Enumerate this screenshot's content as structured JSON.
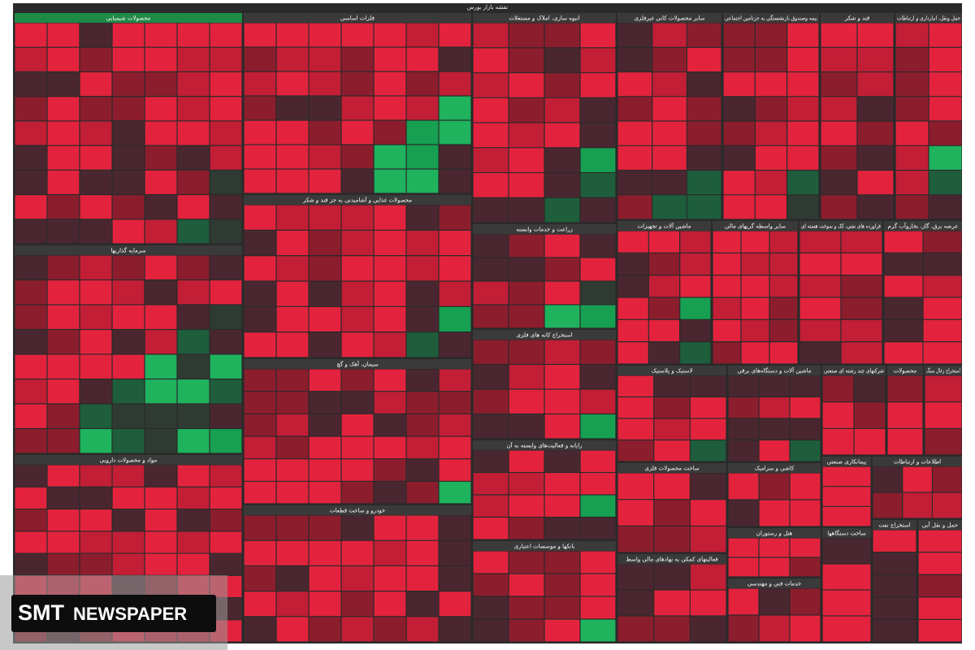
{
  "title": "نقشه بازار بورس",
  "sectors": [
    {
      "name": "محصولات شیمیایی"
    },
    {
      "name": "سرمایه گذاریها"
    },
    {
      "name": "مواد و محصولات دارویی"
    },
    {
      "name": "فلزات اساسی"
    },
    {
      "name": "محصولات غذایی و آشامیدنی به جز قند و شکر"
    },
    {
      "name": "سیمان، آهک و گچ"
    },
    {
      "name": "خودرو و ساخت قطعات"
    },
    {
      "name": "انبوه سازی، املاک و مستغلات"
    },
    {
      "name": "زراعت و خدمات وابسته"
    },
    {
      "name": "استخراج کانه های فلزی"
    },
    {
      "name": "رایانه و فعالیت‌های وابسته به آن"
    },
    {
      "name": "بانکها و موسسات اعتباری"
    },
    {
      "name": "سایر محصولات کانی غیرفلزی"
    },
    {
      "name": "ماشین آلات و تجهیزات"
    },
    {
      "name": "لاستیک و پلاستیک"
    },
    {
      "name": "ساخت محصولات فلزی"
    },
    {
      "name": "فعالیتهای کمکی به نهادهای مالی واسط"
    },
    {
      "name": "بیمه وصندوق بازنشستگی به جزتامین اجتماعی"
    },
    {
      "name": "قند و شکر"
    },
    {
      "name": "حمل ونقل، انبارداری و ارتباطات"
    },
    {
      "name": "سایر واسطه گریهای مالی"
    },
    {
      "name": "فراورده های نفتی، کک و سوخت هسته ای"
    },
    {
      "name": "عرضه برق، گاز، بخاروآب گرم"
    },
    {
      "name": "ماشین آلات و دستگاه‌های برقی"
    },
    {
      "name": "شرکتهای چند رشته ای صنعتی"
    },
    {
      "name": "محصولات"
    },
    {
      "name": "استخراج زغال سنگ"
    },
    {
      "name": "کاشی و سرامیک"
    },
    {
      "name": "هتل و رستوران"
    },
    {
      "name": "خدمات فنی و مهندسی"
    },
    {
      "name": "پیمانکاری صنعتی"
    },
    {
      "name": "ساخت دستگاهها"
    },
    {
      "name": "اطلاعات و ارتباطات"
    },
    {
      "name": "استخراج نفت"
    },
    {
      "name": "حمل و نقل آبی"
    }
  ],
  "watermark": {
    "brand": "SMT",
    "word": "NEWSPAPER"
  }
}
